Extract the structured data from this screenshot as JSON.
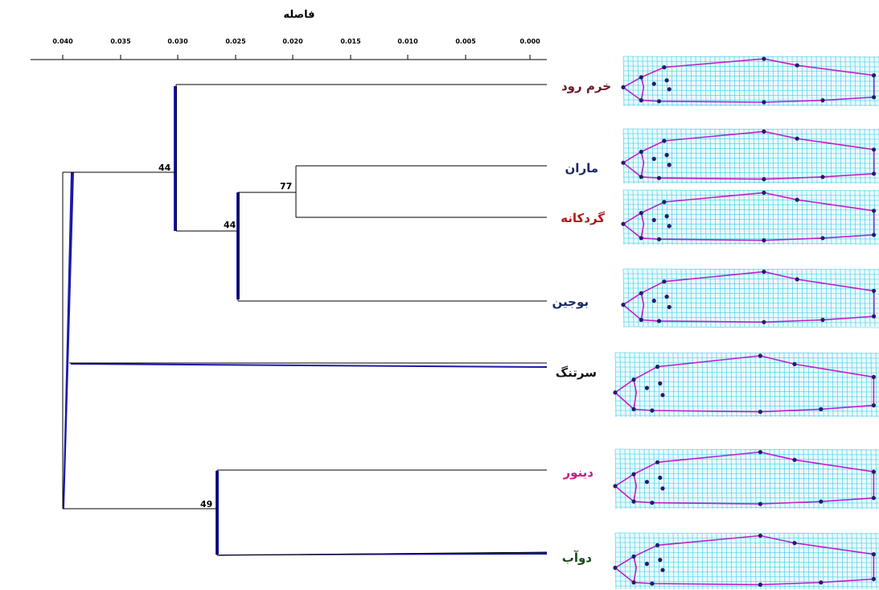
{
  "axis": {
    "title": "فاصله",
    "ticks": [
      "0.040",
      "0.035",
      "0.030",
      "0.025",
      "0.020",
      "0.015",
      "0.010",
      "0.005",
      "0.000"
    ]
  },
  "taxa": [
    {
      "name": "خرم رود",
      "color": "#6b1a2a"
    },
    {
      "name": "ماران",
      "color": "#1a2a66"
    },
    {
      "name": "گردکانه",
      "color": "#b01818"
    },
    {
      "name": "بوجین",
      "color": "#1a2a66"
    },
    {
      "name": "سرتنگ",
      "color": "#111111"
    },
    {
      "name": "دینور",
      "color": "#c0208a"
    },
    {
      "name": "دوآب",
      "color": "#1a4a1a"
    }
  ],
  "nodes": [
    {
      "label": "44",
      "note": "clade: ماران, گردکانه, بوجین, خرم رود"
    },
    {
      "label": "77",
      "note": "clade: ماران, گردکانه"
    },
    {
      "label": "44",
      "note": "clade: ماران, گردکانه, بوجین"
    },
    {
      "label": "49",
      "note": "clade: دینور, دوآب"
    }
  ],
  "colors": {
    "branch": "#000000",
    "wedge": "#1a1aa8",
    "grid": "#3cc8e6",
    "outline": "#c020c8",
    "landmark": "#1e1e6e"
  }
}
